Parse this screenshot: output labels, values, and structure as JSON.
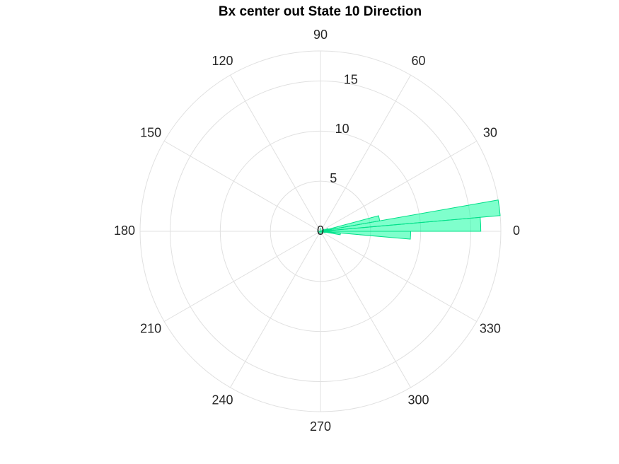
{
  "chart_data": {
    "type": "polar-histogram",
    "title": "Bx  center out State 10 Direction",
    "theta_ticks": [
      "0",
      "30",
      "60",
      "90",
      "120",
      "150",
      "180",
      "210",
      "240",
      "270",
      "300",
      "330"
    ],
    "theta_tick_values_deg": [
      0,
      30,
      60,
      90,
      120,
      150,
      180,
      210,
      240,
      270,
      300,
      330
    ],
    "r_ticks": [
      "0",
      "5",
      "10",
      "15"
    ],
    "r_tick_values": [
      0,
      5,
      10,
      15
    ],
    "rlim": [
      0,
      18
    ],
    "grid": true,
    "series": [
      {
        "bin_width_deg": 5,
        "bins": [
          {
            "theta_deg": -12.5,
            "r": 0.5
          },
          {
            "theta_deg": -7.5,
            "r": 2
          },
          {
            "theta_deg": -2.5,
            "r": 9
          },
          {
            "theta_deg": 2.5,
            "r": 16
          },
          {
            "theta_deg": 7.5,
            "r": 18
          },
          {
            "theta_deg": 12.5,
            "r": 6
          },
          {
            "theta_deg": 17.5,
            "r": 0.8
          },
          {
            "theta_deg": 27.5,
            "r": 0.4
          },
          {
            "theta_deg": 92.5,
            "r": 0.3
          },
          {
            "theta_deg": 177.5,
            "r": 0.3
          },
          {
            "theta_deg": 217.5,
            "r": 0.2
          },
          {
            "theta_deg": 267.5,
            "r": 0.3
          },
          {
            "theta_deg": 322.5,
            "r": 0.3
          }
        ]
      }
    ],
    "colors": {
      "fill": "#00ff99",
      "stroke": "#00e089",
      "grid": "#e0e0e0",
      "text": "#262626"
    }
  }
}
